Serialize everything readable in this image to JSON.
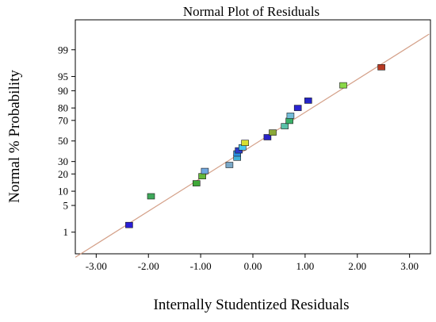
{
  "chart_data": {
    "type": "scatter",
    "title": "Normal Plot of Residuals",
    "xlabel": "Internally Studentized Residuals",
    "ylabel": "Normal % Probability",
    "xlim": [
      -3.4,
      3.4
    ],
    "y_scale": "normal-probability",
    "ylim": [
      0.2,
      99.9
    ],
    "x_ticks": [
      -3.0,
      -2.0,
      -1.0,
      0.0,
      1.0,
      2.0,
      3.0
    ],
    "x_tick_labels": [
      "-3.00",
      "-2.00",
      "-1.00",
      "0.00",
      "1.00",
      "2.00",
      "3.00"
    ],
    "y_ticks": [
      1,
      5,
      10,
      20,
      30,
      50,
      70,
      80,
      90,
      95,
      99
    ],
    "y_tick_labels": [
      "1",
      "5",
      "10",
      "20",
      "30",
      "50",
      "70",
      "80",
      "90",
      "95",
      "99"
    ],
    "grid": false,
    "reference_line": {
      "x": [
        -3.4,
        3.4
      ],
      "y": [
        0.15,
        99.7
      ],
      "color": "#d4a088"
    },
    "points": [
      {
        "x": -2.37,
        "y": 1.6,
        "color": "#2a1fd6"
      },
      {
        "x": -1.95,
        "y": 7.9,
        "color": "#3fa85a"
      },
      {
        "x": -1.08,
        "y": 14.0,
        "color": "#3fa838"
      },
      {
        "x": -0.97,
        "y": 18.4,
        "color": "#64b83a"
      },
      {
        "x": -0.92,
        "y": 22.2,
        "color": "#6fa8e0"
      },
      {
        "x": -0.45,
        "y": 27.0,
        "color": "#7aa8c8"
      },
      {
        "x": -0.3,
        "y": 33.5,
        "color": "#40b0d8"
      },
      {
        "x": -0.3,
        "y": 37.5,
        "color": "#2a8ee0"
      },
      {
        "x": -0.27,
        "y": 40.5,
        "color": "#2a3ac8"
      },
      {
        "x": -0.2,
        "y": 43.5,
        "color": "#48c8f0"
      },
      {
        "x": -0.15,
        "y": 48.0,
        "color": "#d8e030"
      },
      {
        "x": 0.28,
        "y": 53.8,
        "color": "#2a24c8"
      },
      {
        "x": 0.38,
        "y": 58.5,
        "color": "#8aa838"
      },
      {
        "x": 0.61,
        "y": 64.7,
        "color": "#5ac0a8"
      },
      {
        "x": 0.7,
        "y": 69.6,
        "color": "#3ab068"
      },
      {
        "x": 0.72,
        "y": 74.0,
        "color": "#74bcd8"
      },
      {
        "x": 0.86,
        "y": 80.0,
        "color": "#2a24d0"
      },
      {
        "x": 1.06,
        "y": 84.8,
        "color": "#2424c8"
      },
      {
        "x": 1.73,
        "y": 92.2,
        "color": "#8ad848"
      },
      {
        "x": 2.46,
        "y": 97.0,
        "color": "#b83a22"
      }
    ]
  }
}
